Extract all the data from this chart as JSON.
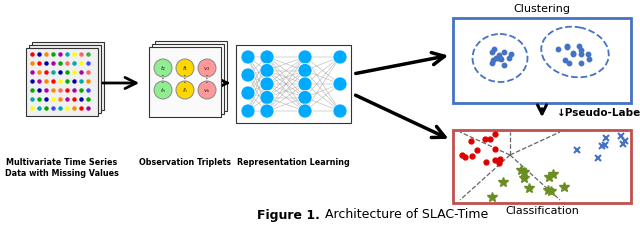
{
  "title_bold": "Figure 1.",
  "title_normal": " Architecture of SLAC-Time",
  "bg_color": "#ffffff",
  "fig_width": 6.4,
  "fig_height": 2.31,
  "label_multivariate": "Multivariate Time Series\nData with Missing Values",
  "label_triplets": "Observation Triplets",
  "label_repr": "Representation Learning",
  "label_clustering": "Clustering",
  "label_pseudo": "↓Pseudo-Labels",
  "label_classification": "Classification",
  "clustering_box_color": "#4472C4",
  "classification_box_color": "#C0504D",
  "blue_dot_color": "#4472C4",
  "red_dot_color": "#DD0000",
  "blue_x_color": "#4472C4",
  "star_color": "#6B8E23",
  "neural_node_color": "#00AAFF",
  "sheet_color": "#F0F0F0",
  "triplet_green": "#90EE90",
  "triplet_yellow": "#FFD700",
  "triplet_pink": "#FF9999"
}
